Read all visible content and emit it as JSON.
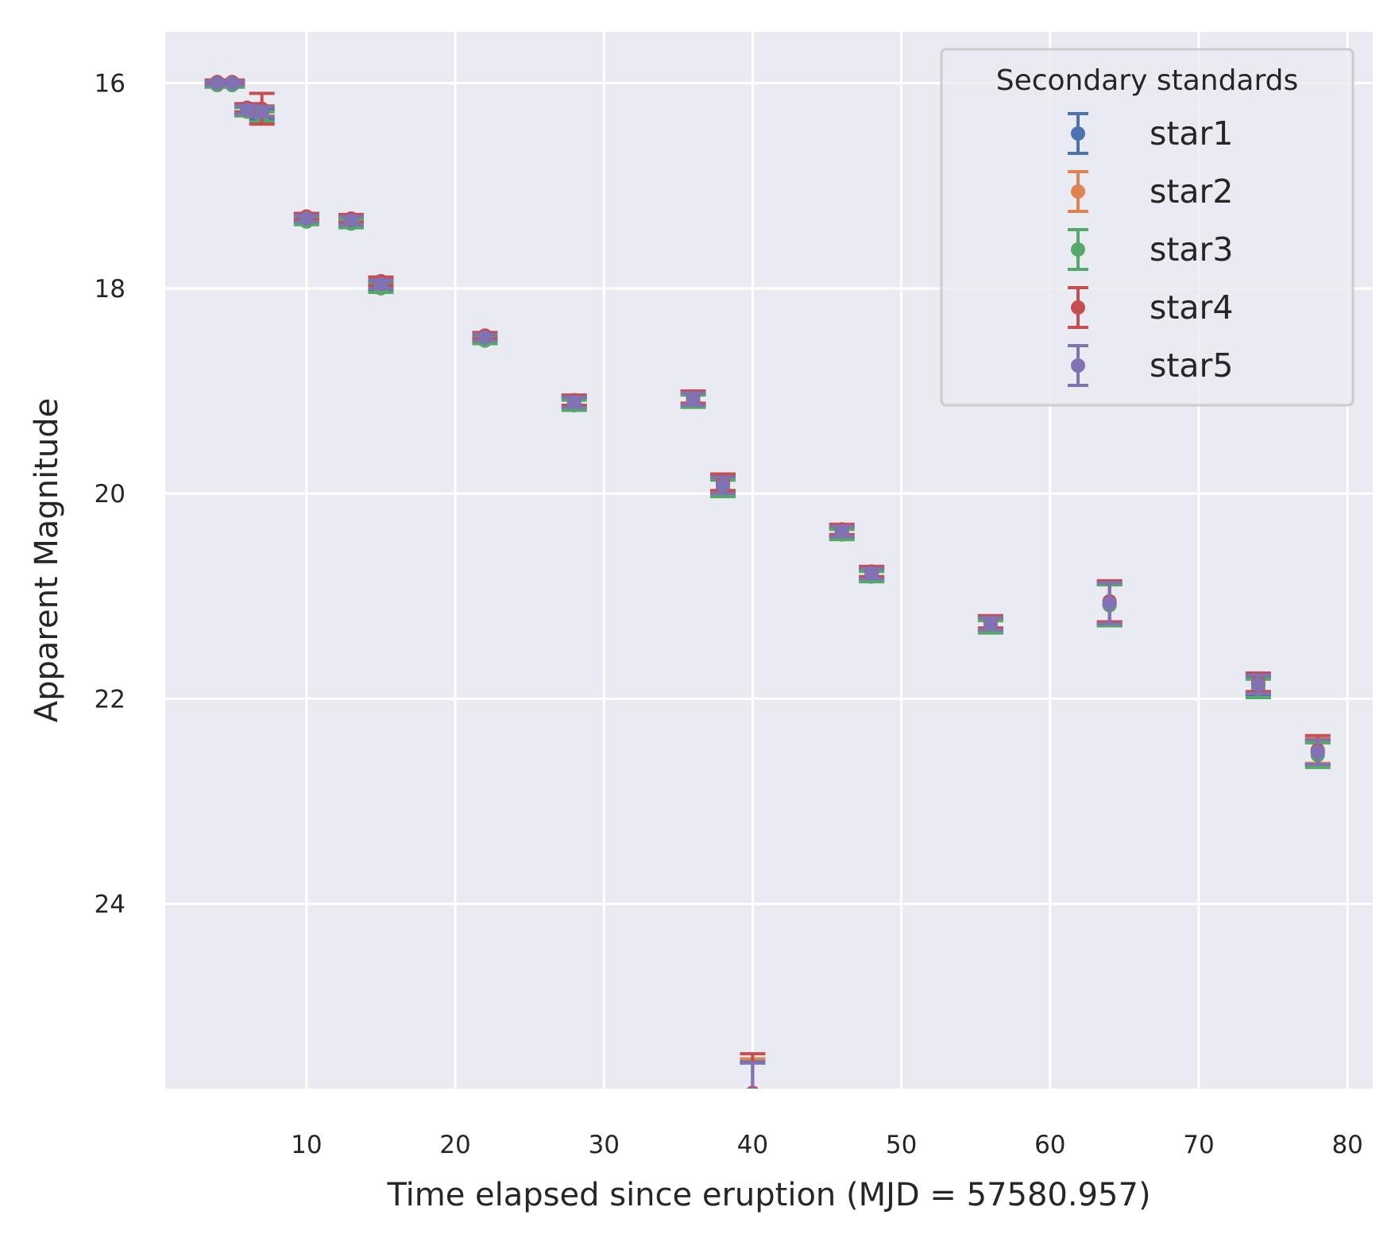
{
  "chart_data": {
    "type": "scatter",
    "title": "",
    "xlabel": "Time elapsed since eruption (MJD = 57580.957)",
    "ylabel": "Apparent Magnitude",
    "xlim": [
      0.5,
      81.7
    ],
    "ylim": [
      25.8,
      15.5
    ],
    "y_inverted": true,
    "grid": true,
    "x_ticks": [
      10,
      20,
      30,
      40,
      50,
      60,
      70,
      80
    ],
    "y_ticks": [
      16,
      18,
      20,
      22,
      24
    ],
    "legend": {
      "title": "Secondary standards",
      "position": "top-right"
    },
    "x": [
      4.0,
      5.0,
      6.0,
      7.0,
      10.0,
      13.0,
      15.0,
      22.0,
      28.0,
      36.0,
      38.0,
      40.0,
      46.0,
      48.0,
      56.0,
      64.0,
      74.0,
      78.0
    ],
    "series": [
      {
        "name": "star1",
        "color": "#4c72b0",
        "y": [
          16.0,
          16.0,
          16.27,
          16.3,
          17.33,
          17.35,
          17.97,
          18.49,
          19.12,
          19.09,
          19.93,
          25.88,
          20.38,
          20.79,
          21.28,
          21.08,
          21.87,
          22.53
        ],
        "yerr": [
          0.02,
          0.02,
          0.04,
          0.05,
          0.03,
          0.04,
          0.04,
          0.03,
          0.05,
          0.06,
          0.08,
          0.35,
          0.05,
          0.05,
          0.06,
          0.2,
          0.09,
          0.12
        ]
      },
      {
        "name": "star2",
        "color": "#dd8452",
        "y": [
          15.99,
          15.99,
          16.25,
          16.27,
          17.31,
          17.33,
          17.95,
          18.47,
          19.1,
          19.07,
          19.91,
          25.86,
          20.36,
          20.77,
          21.26,
          21.06,
          21.85,
          22.51
        ],
        "yerr": [
          0.02,
          0.02,
          0.04,
          0.05,
          0.03,
          0.04,
          0.04,
          0.03,
          0.05,
          0.06,
          0.08,
          0.35,
          0.05,
          0.05,
          0.06,
          0.2,
          0.09,
          0.12
        ]
      },
      {
        "name": "star3",
        "color": "#55a868",
        "y": [
          16.02,
          16.02,
          16.28,
          16.33,
          17.35,
          17.37,
          18.0,
          18.51,
          19.14,
          19.1,
          19.95,
          25.9,
          20.4,
          20.81,
          21.3,
          21.09,
          21.9,
          22.55
        ],
        "yerr": [
          0.02,
          0.02,
          0.04,
          0.05,
          0.03,
          0.04,
          0.04,
          0.03,
          0.05,
          0.06,
          0.08,
          0.35,
          0.05,
          0.05,
          0.06,
          0.2,
          0.09,
          0.12
        ]
      },
      {
        "name": "star4",
        "color": "#c44e52",
        "y": [
          15.99,
          15.99,
          16.24,
          16.25,
          17.3,
          17.32,
          17.93,
          18.46,
          19.09,
          19.06,
          19.89,
          25.84,
          20.35,
          20.76,
          21.25,
          21.05,
          21.84,
          22.5
        ],
        "yerr": [
          0.02,
          0.02,
          0.04,
          0.15,
          0.03,
          0.04,
          0.04,
          0.03,
          0.05,
          0.06,
          0.08,
          0.38,
          0.05,
          0.05,
          0.06,
          0.2,
          0.09,
          0.14
        ]
      },
      {
        "name": "star5",
        "color": "#8172b3",
        "y": [
          16.0,
          16.0,
          16.26,
          16.28,
          17.32,
          17.34,
          17.96,
          18.48,
          19.11,
          19.08,
          19.92,
          25.88,
          20.37,
          20.78,
          21.27,
          21.07,
          21.86,
          22.52
        ],
        "yerr": [
          0.02,
          0.02,
          0.04,
          0.05,
          0.03,
          0.04,
          0.04,
          0.03,
          0.05,
          0.06,
          0.08,
          0.33,
          0.05,
          0.05,
          0.06,
          0.2,
          0.09,
          0.12
        ]
      }
    ]
  }
}
